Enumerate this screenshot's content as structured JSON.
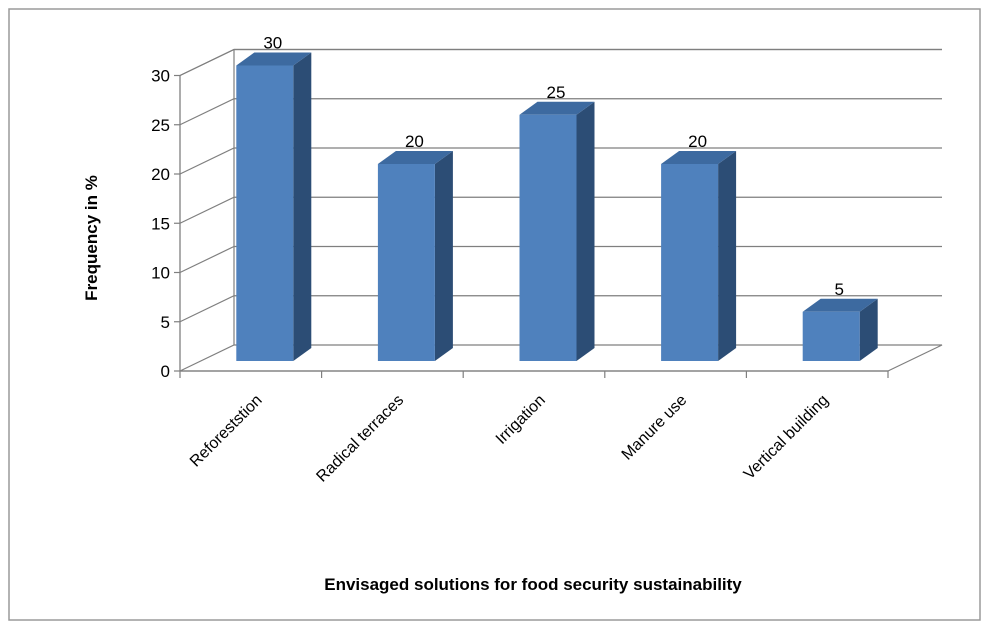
{
  "chart_data": {
    "type": "bar",
    "style": "3d-column",
    "title": "",
    "xlabel": "Envisaged solutions  for food security sustainability",
    "ylabel": "Frequency in %",
    "categories": [
      "Reforeststion",
      "Radical terraces",
      "Irrigation",
      "Manure use",
      "Vertical building"
    ],
    "values": [
      30,
      20,
      25,
      20,
      5
    ],
    "data_labels": [
      "30",
      "20",
      "25",
      "20",
      "5"
    ],
    "ylim": [
      0,
      30
    ],
    "yticks": [
      "0",
      "5",
      "10",
      "15",
      "20",
      "25",
      "30"
    ],
    "grid": true,
    "legend": "none",
    "colors": {
      "front": "#4f81bd",
      "side": "#2c4d75",
      "top": "#3d6aa0",
      "grid": "#7f7f7f"
    }
  }
}
